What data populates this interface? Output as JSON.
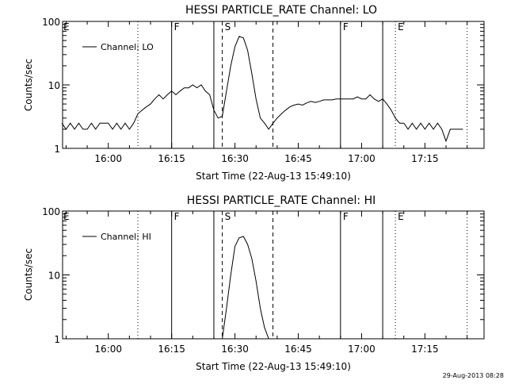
{
  "chart_data": [
    {
      "type": "line",
      "title": "HESSI PARTICLE_RATE Channel: LO",
      "xlabel": "Start Time (22-Aug-13 15:49:10)",
      "ylabel": "Counts/sec",
      "yscale": "log",
      "ylim": [
        1,
        100
      ],
      "xlim": [
        "15:49:10",
        "17:29:00"
      ],
      "xticks": [
        "16:00",
        "16:15",
        "16:30",
        "16:45",
        "17:00",
        "17:15"
      ],
      "yticks": [
        "1",
        "10",
        "100"
      ],
      "grid": false,
      "legend": {
        "position": "top-left",
        "entries": [
          "Channel: LO"
        ]
      },
      "series": [
        {
          "name": "Channel: LO",
          "x": [
            "15:49",
            "15:50",
            "15:51",
            "15:52",
            "15:53",
            "15:54",
            "15:55",
            "15:56",
            "15:57",
            "15:58",
            "15:59",
            "16:00",
            "16:01",
            "16:02",
            "16:03",
            "16:04",
            "16:05",
            "16:06",
            "16:07",
            "16:08",
            "16:09",
            "16:10",
            "16:11",
            "16:12",
            "16:13",
            "16:14",
            "16:15",
            "16:16",
            "16:17",
            "16:18",
            "16:19",
            "16:20",
            "16:21",
            "16:22",
            "16:23",
            "16:24",
            "16:25",
            "16:26",
            "16:27",
            "16:28",
            "16:29",
            "16:30",
            "16:31",
            "16:32",
            "16:33",
            "16:34",
            "16:35",
            "16:36",
            "16:37",
            "16:38",
            "16:39",
            "16:40",
            "16:41",
            "16:42",
            "16:43",
            "16:44",
            "16:45",
            "16:46",
            "16:47",
            "16:48",
            "16:49",
            "16:50",
            "16:51",
            "16:52",
            "16:53",
            "16:54",
            "16:55",
            "16:56",
            "16:57",
            "16:58",
            "16:59",
            "17:00",
            "17:01",
            "17:02",
            "17:03",
            "17:04",
            "17:05",
            "17:06",
            "17:07",
            "17:08",
            "17:09",
            "17:10",
            "17:11",
            "17:12",
            "17:13",
            "17:14",
            "17:15",
            "17:16",
            "17:17",
            "17:18",
            "17:19",
            "17:20",
            "17:21",
            "17:22",
            "17:23",
            "17:24"
          ],
          "y": [
            2.5,
            2,
            2.5,
            2,
            2.5,
            2,
            2,
            2.5,
            2,
            2.5,
            2.5,
            2.5,
            2,
            2.5,
            2,
            2.5,
            2,
            2.5,
            3.5,
            4,
            4.5,
            5,
            6,
            7,
            6,
            7,
            8,
            7,
            8,
            9,
            9,
            10,
            9,
            10,
            8,
            7,
            4,
            3,
            3.2,
            8,
            20,
            40,
            58,
            55,
            35,
            15,
            6,
            3,
            2.5,
            2,
            2.5,
            3,
            3.5,
            4,
            4.5,
            4.8,
            5,
            4.8,
            5.2,
            5.5,
            5.3,
            5.5,
            5.8,
            5.8,
            5.8,
            6,
            6,
            6,
            6,
            6,
            6.5,
            6,
            6,
            7,
            6,
            5.5,
            6,
            5,
            4,
            3,
            2.5,
            2.5,
            2,
            2.5,
            2,
            2.5,
            2,
            2.5,
            2,
            2.5,
            2,
            1.3,
            2,
            2,
            2,
            2
          ]
        }
      ],
      "annotations": {
        "solid_lines": [
          {
            "time": "16:15",
            "label": "F"
          },
          {
            "time": "16:25",
            "label": ""
          },
          {
            "time": "16:55",
            "label": "F"
          },
          {
            "time": "17:05",
            "label": ""
          }
        ],
        "dashed_lines": [
          {
            "time": "16:27",
            "label": "S"
          },
          {
            "time": "16:39",
            "label": ""
          }
        ],
        "dotted_lines": [
          {
            "time": "16:07",
            "label": ""
          },
          {
            "time": "17:08",
            "label": "E"
          },
          {
            "time": "17:25",
            "label": ""
          }
        ],
        "edge_labels": [
          {
            "time": "15:49",
            "label": "E"
          }
        ]
      }
    },
    {
      "type": "line",
      "title": "HESSI PARTICLE_RATE Channel: HI",
      "xlabel": "Start Time (22-Aug-13 15:49:10)",
      "ylabel": "Counts/sec",
      "yscale": "log",
      "ylim": [
        1,
        100
      ],
      "xlim": [
        "15:49:10",
        "17:29:00"
      ],
      "xticks": [
        "16:00",
        "16:15",
        "16:30",
        "16:45",
        "17:00",
        "17:15"
      ],
      "yticks": [
        "1",
        "10",
        "100"
      ],
      "grid": false,
      "legend": {
        "position": "top-left",
        "entries": [
          "Channel: HI"
        ]
      },
      "series": [
        {
          "name": "Channel: HI",
          "x": [
            "16:27",
            "16:28",
            "16:29",
            "16:30",
            "16:31",
            "16:32",
            "16:33",
            "16:34",
            "16:35",
            "16:36",
            "16:37",
            "16:38",
            "16:39"
          ],
          "y": [
            1,
            3,
            10,
            28,
            38,
            40,
            30,
            18,
            8,
            3,
            1.5,
            1,
            1
          ]
        }
      ],
      "annotations": {
        "solid_lines": [
          {
            "time": "16:15",
            "label": "F"
          },
          {
            "time": "16:25",
            "label": ""
          },
          {
            "time": "16:55",
            "label": "F"
          },
          {
            "time": "17:05",
            "label": ""
          }
        ],
        "dashed_lines": [
          {
            "time": "16:27",
            "label": "S"
          },
          {
            "time": "16:39",
            "label": ""
          }
        ],
        "dotted_lines": [
          {
            "time": "16:07",
            "label": ""
          },
          {
            "time": "17:08",
            "label": "E"
          },
          {
            "time": "17:25",
            "label": ""
          }
        ],
        "edge_labels": [
          {
            "time": "15:49",
            "label": "E"
          }
        ]
      }
    }
  ],
  "footer": {
    "timestamp": "29-Aug-2013 08:28"
  }
}
